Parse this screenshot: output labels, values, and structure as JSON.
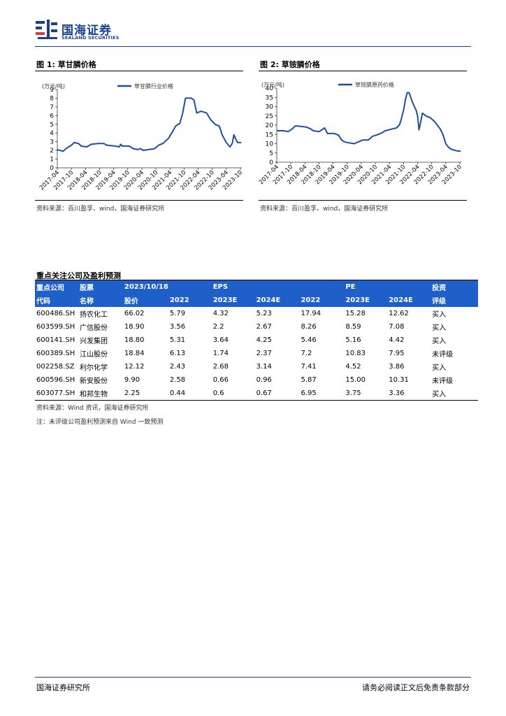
{
  "header": {
    "logo_cn": "国海证券",
    "logo_en": "SEALAND SECURITIES"
  },
  "figure1": {
    "title": "图 1:  草甘膦价格",
    "source": "资料来源：百川盈孚、wind，国海证券研究所",
    "chart_data": {
      "type": "line",
      "unit_label": "(万元/吨)",
      "series": [
        {
          "name": "草甘膦行业价格",
          "color": "#1f4e9c"
        }
      ],
      "x_tick_labels": [
        "2017-04",
        "2017-10",
        "2018-04",
        "2018-10",
        "2019-04",
        "2019-10",
        "2020-04",
        "2020-10",
        "2021-04",
        "2021-10",
        "2022-04",
        "2022-10",
        "2023-04",
        "2023-10"
      ],
      "y_ticks": [
        0,
        1,
        2,
        3,
        4,
        5,
        6,
        7,
        8,
        9
      ],
      "ylim": [
        0,
        9
      ],
      "xlim": [
        2017.25,
        2023.8
      ],
      "points": [
        [
          2017.25,
          2.1
        ],
        [
          2017.45,
          1.9
        ],
        [
          2017.6,
          2.3
        ],
        [
          2017.75,
          2.6
        ],
        [
          2017.85,
          2.9
        ],
        [
          2018.0,
          2.8
        ],
        [
          2018.1,
          2.5
        ],
        [
          2018.3,
          2.4
        ],
        [
          2018.45,
          2.7
        ],
        [
          2018.7,
          2.8
        ],
        [
          2018.9,
          2.8
        ],
        [
          2019.0,
          2.6
        ],
        [
          2019.3,
          2.5
        ],
        [
          2019.45,
          2.4
        ],
        [
          2019.5,
          2.7
        ],
        [
          2019.55,
          2.5
        ],
        [
          2019.8,
          2.5
        ],
        [
          2019.95,
          2.2
        ],
        [
          2020.1,
          2.1
        ],
        [
          2020.2,
          2.2
        ],
        [
          2020.3,
          2.0
        ],
        [
          2020.5,
          2.1
        ],
        [
          2020.7,
          2.2
        ],
        [
          2020.85,
          2.6
        ],
        [
          2021.0,
          2.8
        ],
        [
          2021.2,
          3.4
        ],
        [
          2021.35,
          4.2
        ],
        [
          2021.45,
          4.8
        ],
        [
          2021.6,
          5.1
        ],
        [
          2021.7,
          6.3
        ],
        [
          2021.8,
          8.0
        ],
        [
          2022.0,
          8.0
        ],
        [
          2022.1,
          7.8
        ],
        [
          2022.2,
          6.3
        ],
        [
          2022.35,
          6.5
        ],
        [
          2022.55,
          6.3
        ],
        [
          2022.7,
          5.5
        ],
        [
          2022.85,
          5.0
        ],
        [
          2023.0,
          4.8
        ],
        [
          2023.1,
          3.8
        ],
        [
          2023.25,
          2.9
        ],
        [
          2023.38,
          2.4
        ],
        [
          2023.46,
          2.8
        ],
        [
          2023.52,
          3.8
        ],
        [
          2023.6,
          3.2
        ],
        [
          2023.65,
          2.9
        ],
        [
          2023.78,
          2.9
        ]
      ]
    }
  },
  "figure2": {
    "title": "图 2:  草铵膦价格",
    "source": "资料来源：百川盈孚、wind，国海证券研究所",
    "chart_data": {
      "type": "line",
      "unit_label": "(万元/吨)",
      "series": [
        {
          "name": "草铵膦原药价格",
          "color": "#1f4e9c"
        }
      ],
      "x_tick_labels": [
        "2017-04",
        "2017-10",
        "2018-04",
        "2018-10",
        "2019-04",
        "2019-10",
        "2020-04",
        "2020-10",
        "2021-04",
        "2021-10",
        "2022-04",
        "2022-10",
        "2023-04",
        "2023-10"
      ],
      "y_ticks": [
        0,
        5,
        10,
        15,
        20,
        25,
        30,
        35,
        40
      ],
      "ylim": [
        0,
        40
      ],
      "xlim": [
        2017.25,
        2023.8
      ],
      "points": [
        [
          2017.25,
          17.0
        ],
        [
          2017.5,
          17.0
        ],
        [
          2017.65,
          16.5
        ],
        [
          2017.8,
          18.0
        ],
        [
          2017.9,
          19.5
        ],
        [
          2018.0,
          19.5
        ],
        [
          2018.3,
          19.0
        ],
        [
          2018.45,
          18.0
        ],
        [
          2018.55,
          17.0
        ],
        [
          2018.75,
          16.5
        ],
        [
          2018.95,
          18.5
        ],
        [
          2019.05,
          15.5
        ],
        [
          2019.3,
          15.5
        ],
        [
          2019.45,
          14.5
        ],
        [
          2019.55,
          12.0
        ],
        [
          2019.65,
          11.0
        ],
        [
          2019.8,
          10.5
        ],
        [
          2020.0,
          10.0
        ],
        [
          2020.15,
          11.0
        ],
        [
          2020.3,
          12.0
        ],
        [
          2020.5,
          12.0
        ],
        [
          2020.65,
          14.0
        ],
        [
          2020.85,
          15.0
        ],
        [
          2021.0,
          16.0
        ],
        [
          2021.1,
          17.0
        ],
        [
          2021.35,
          18.0
        ],
        [
          2021.5,
          18.5
        ],
        [
          2021.6,
          20.0
        ],
        [
          2021.65,
          22.0
        ],
        [
          2021.75,
          28.0
        ],
        [
          2021.82,
          34.0
        ],
        [
          2021.88,
          37.5
        ],
        [
          2021.95,
          37.5
        ],
        [
          2022.05,
          33.0
        ],
        [
          2022.15,
          29.5
        ],
        [
          2022.2,
          28.0
        ],
        [
          2022.25,
          25.0
        ],
        [
          2022.3,
          17.5
        ],
        [
          2022.35,
          21.0
        ],
        [
          2022.42,
          26.5
        ],
        [
          2022.55,
          25.0
        ],
        [
          2022.7,
          24.0
        ],
        [
          2022.85,
          22.0
        ],
        [
          2022.95,
          20.0
        ],
        [
          2023.05,
          18.0
        ],
        [
          2023.15,
          15.0
        ],
        [
          2023.25,
          10.0
        ],
        [
          2023.35,
          8.0
        ],
        [
          2023.45,
          7.0
        ],
        [
          2023.55,
          6.5
        ],
        [
          2023.7,
          6.0
        ],
        [
          2023.78,
          6.0
        ]
      ]
    }
  },
  "table": {
    "title": "重点关注公司及盈利预测",
    "header_row1": [
      "重点公司",
      "股票",
      "2023/10/18",
      "",
      "EPS",
      "",
      "",
      "PE",
      "",
      "投资"
    ],
    "header_row2": [
      "代码",
      "名称",
      "股价",
      "2022",
      "2023E",
      "2024E",
      "2022",
      "2023E",
      "2024E",
      "评级"
    ],
    "rows": [
      [
        "600486.SH",
        "扬农化工",
        "66.02",
        "5.79",
        "4.32",
        "5.23",
        "17.94",
        "15.28",
        "12.62",
        "买入"
      ],
      [
        "603599.SH",
        "广信股份",
        "18.90",
        "3.56",
        "2.2",
        "2.67",
        "8.26",
        "8.59",
        "7.08",
        "买入"
      ],
      [
        "600141.SH",
        "兴发集团",
        "18.80",
        "5.31",
        "3.64",
        "4.25",
        "5.46",
        "5.16",
        "4.42",
        "买入"
      ],
      [
        "600389.SH",
        "江山股份",
        "18.84",
        "6.13",
        "1.74",
        "2.37",
        "7.2",
        "10.83",
        "7.95",
        "未评级"
      ],
      [
        "002258.SZ",
        "利尔化学",
        "12.12",
        "2.43",
        "2.68",
        "3.14",
        "7.41",
        "4.52",
        "3.86",
        "买入"
      ],
      [
        "600596.SH",
        "新安股份",
        "9.90",
        "2.58",
        "0.66",
        "0.96",
        "5.87",
        "15.00",
        "10.31",
        "未评级"
      ],
      [
        "603077.SH",
        "和邦生物",
        "2.25",
        "0.44",
        "0.6",
        "0.67",
        "6.95",
        "3.75",
        "3.36",
        "买入"
      ]
    ],
    "source": "资料来源：Wind 资讯，国海证券研究所",
    "note": "注：未评级公司盈利预测来自 Wind 一致预测"
  },
  "footer": {
    "left": "国海证券研究所",
    "right": "请务必阅读正文后免责条款部分"
  }
}
